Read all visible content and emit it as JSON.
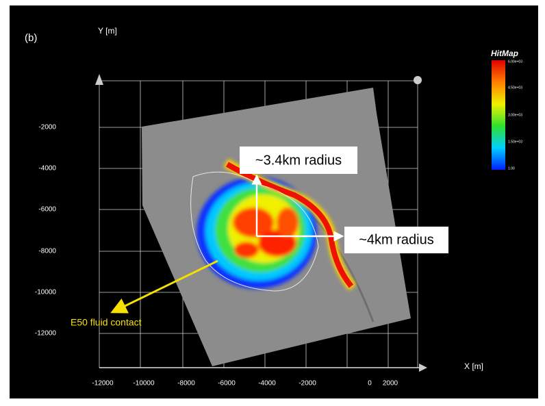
{
  "panel_label": "(b)",
  "y_axis_label": "Y [m]",
  "x_axis_label": "X [m]",
  "y_ticks": [
    "-2000",
    "-4000",
    "-6000",
    "-8000",
    "-10000",
    "-12000"
  ],
  "x_ticks": [
    "-12000",
    "-10000",
    "-8000",
    "-6000",
    "-4000",
    "-2000",
    "0",
    "2000"
  ],
  "legend": {
    "title": "HitMap",
    "labels": [
      "6.00e+03",
      "4.50e+03",
      "3.00e+03",
      "1.50e+03",
      "1.00"
    ]
  },
  "annotations": {
    "radius_y": "~3.4km radius",
    "radius_x": "~4km radius",
    "contact": "E50 fluid contact"
  }
}
